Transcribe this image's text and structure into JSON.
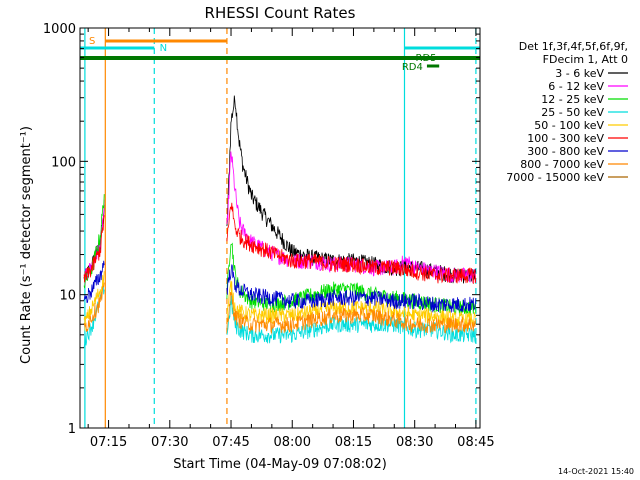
{
  "chart_data": {
    "type": "line",
    "title": "RHESSI Count Rates",
    "xlabel": "Start Time (04-May-09 07:08:02)",
    "ylabel": "Count Rate (s⁻¹ detector segment⁻¹)",
    "yscale": "log",
    "ylim": [
      1,
      1000
    ],
    "xlim": [
      "07:08",
      "08:46"
    ],
    "x_ticks": [
      "07:15",
      "07:30",
      "07:45",
      "08:00",
      "08:15",
      "08:30",
      "08:45"
    ],
    "y_ticks": [
      "1",
      "10",
      "100",
      "1000"
    ],
    "legend_header": [
      "Det 1f,3f,4f,5f,6f,9f,",
      "FDecim 1, Att 0"
    ],
    "legend_position": "right",
    "series": [
      {
        "name": "3 - 6 keV",
        "color": "#000000",
        "x": [
          "07:09",
          "07:11",
          "07:13",
          "07:14",
          "07:44",
          "07:45",
          "07:46",
          "07:47",
          "07:48",
          "07:50",
          "07:53",
          "07:56",
          "08:00",
          "08:05",
          "08:10",
          "08:15",
          "08:20",
          "08:25",
          "08:28",
          "08:30",
          "08:35",
          "08:40",
          "08:45"
        ],
        "y": [
          13,
          17,
          24,
          45,
          30,
          200,
          300,
          140,
          90,
          55,
          40,
          30,
          21,
          19,
          18,
          18,
          17,
          16,
          16,
          16,
          15,
          14,
          14
        ]
      },
      {
        "name": "6 - 12 keV",
        "color": "#ff00ff",
        "x": [
          "07:09",
          "07:11",
          "07:13",
          "07:14",
          "07:44",
          "07:45",
          "07:46",
          "07:47",
          "07:48",
          "07:50",
          "07:53",
          "07:56",
          "08:00",
          "08:05",
          "08:10",
          "08:15",
          "08:20",
          "08:25",
          "08:28",
          "08:30",
          "08:35",
          "08:40",
          "08:45"
        ],
        "y": [
          13,
          17,
          24,
          48,
          30,
          120,
          60,
          35,
          30,
          25,
          22,
          20,
          18,
          18,
          17,
          17,
          16,
          16,
          18,
          16,
          15,
          14,
          14
        ]
      },
      {
        "name": "12 - 25 keV",
        "color": "#00dd00",
        "x": [
          "07:09",
          "07:11",
          "07:13",
          "07:14",
          "07:44",
          "07:45",
          "07:46",
          "07:47",
          "07:50",
          "07:55",
          "08:00",
          "08:05",
          "08:10",
          "08:15",
          "08:20",
          "08:25",
          "08:30",
          "08:35",
          "08:40",
          "08:45"
        ],
        "y": [
          12,
          16,
          28,
          60,
          10,
          28,
          14,
          11,
          9,
          8.5,
          9,
          10,
          11,
          11,
          10,
          9.5,
          9,
          8.5,
          8,
          8
        ]
      },
      {
        "name": "25 - 50 keV",
        "color": "#00dddd",
        "x": [
          "07:09",
          "07:11",
          "07:13",
          "07:14",
          "07:44",
          "07:45",
          "07:46",
          "07:47",
          "07:50",
          "07:55",
          "08:00",
          "08:05",
          "08:10",
          "08:15",
          "08:20",
          "08:25",
          "08:30",
          "08:35",
          "08:40",
          "08:45"
        ],
        "y": [
          4.5,
          6,
          9,
          12,
          5,
          9,
          6,
          5.5,
          5,
          5,
          5,
          5.5,
          6,
          6,
          6,
          6,
          5.5,
          5.5,
          5,
          5
        ]
      },
      {
        "name": "50 - 100 keV",
        "color": "#ffcc00",
        "x": [
          "07:09",
          "07:11",
          "07:13",
          "07:14",
          "07:44",
          "07:45",
          "07:46",
          "07:47",
          "07:50",
          "07:55",
          "08:00",
          "08:05",
          "08:10",
          "08:15",
          "08:20",
          "08:25",
          "08:30",
          "08:35",
          "08:40",
          "08:45"
        ],
        "y": [
          6,
          8,
          11,
          14,
          7,
          12,
          8,
          7.5,
          7,
          7,
          7,
          7.5,
          8,
          8,
          8,
          7.5,
          7,
          7,
          6.5,
          6.5
        ]
      },
      {
        "name": "100 - 300 keV",
        "color": "#ff0000",
        "x": [
          "07:09",
          "07:11",
          "07:13",
          "07:14",
          "07:44",
          "07:45",
          "07:46",
          "07:47",
          "07:48",
          "07:50",
          "07:53",
          "07:56",
          "08:00",
          "08:05",
          "08:10",
          "08:15",
          "08:20",
          "08:25",
          "08:30",
          "08:35",
          "08:40",
          "08:45"
        ],
        "y": [
          13,
          16,
          22,
          40,
          24,
          50,
          32,
          28,
          26,
          24,
          22,
          20,
          18,
          18,
          17,
          17,
          16,
          16,
          15,
          14,
          14,
          14
        ]
      },
      {
        "name": "300 - 800 keV",
        "color": "#0000cc",
        "x": [
          "07:09",
          "07:11",
          "07:13",
          "07:14",
          "07:44",
          "07:45",
          "07:46",
          "07:47",
          "07:50",
          "07:55",
          "08:00",
          "08:05",
          "08:10",
          "08:15",
          "08:20",
          "08:25",
          "08:30",
          "08:35",
          "08:40",
          "08:45"
        ],
        "y": [
          9,
          11,
          14,
          18,
          11,
          16,
          12,
          11,
          10,
          9.5,
          9,
          9,
          9.5,
          9.5,
          9.5,
          9,
          9,
          8.5,
          8.5,
          8.5
        ]
      },
      {
        "name": "800 - 7000 keV",
        "color": "#ff8800",
        "x": [
          "07:09",
          "07:11",
          "07:13",
          "07:14",
          "07:44",
          "07:45",
          "07:46",
          "07:47",
          "07:50",
          "07:55",
          "08:00",
          "08:05",
          "08:10",
          "08:15",
          "08:20",
          "08:25",
          "08:30",
          "08:35",
          "08:40",
          "08:45"
        ],
        "y": [
          5.5,
          7,
          9,
          11,
          6,
          10,
          7,
          6.5,
          6,
          6,
          6,
          6.5,
          7,
          7,
          7,
          6.5,
          6,
          6,
          6,
          6
        ]
      },
      {
        "name": "7000 - 15000 keV",
        "color": "#aa6600",
        "x": [],
        "y": []
      }
    ],
    "annotations": [
      {
        "text": "S",
        "color": "#ff8800"
      },
      {
        "text": "N",
        "color": "#00dddd"
      },
      {
        "text": "RD4",
        "color": "#007700"
      },
      {
        "text": "RD5",
        "color": "#007700"
      }
    ],
    "footer_stamp": "14-Oct-2021 15:40"
  }
}
